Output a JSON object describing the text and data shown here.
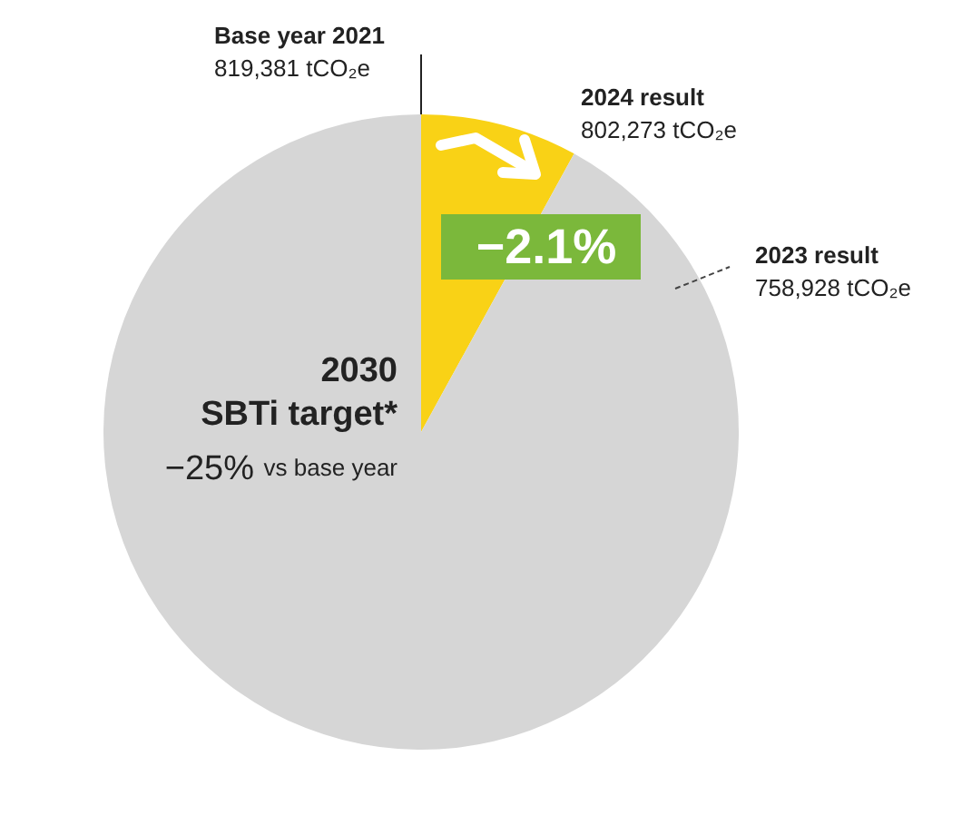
{
  "chart_data": {
    "type": "pie",
    "categories": [
      null,
      null
    ],
    "values": [
      8,
      92
    ],
    "colors": [
      "#f9d216",
      "#d6d6d6"
    ],
    "annotations": [
      "Base year 2021",
      "819,381 tCO₂e",
      "2024 result",
      "802,273 tCO₂e",
      "2023 result",
      "758,928 tCO₂e",
      "−2.1%",
      "2030",
      "SBTi target*",
      "−25%",
      "vs base year"
    ]
  }
}
